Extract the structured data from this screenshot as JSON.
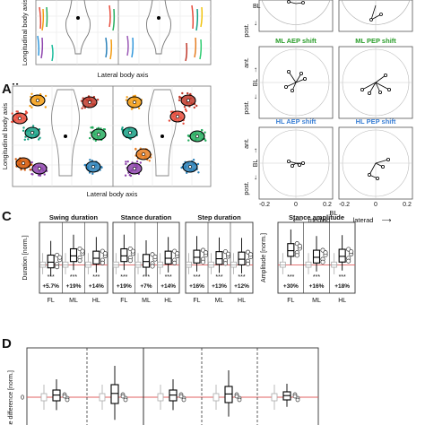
{
  "panels": {
    "aii": "Aii",
    "c": "C",
    "d": "D"
  },
  "panel_a": {
    "ylabel": "Longitudinal body axis",
    "xlabel": "Lateral body axis",
    "aii_ylabel": "Longitudinal body axis",
    "aii_xlabel": "Lateral body axis"
  },
  "shift_panels": {
    "bl": "BL",
    "ant": "ant.",
    "post": "post.",
    "titles": {
      "ml_aep": "ML AEP shift",
      "ml_pep": "ML PEP shift",
      "hl_aep": "HL AEP shift",
      "hl_pep": "HL PEP shift"
    },
    "x_ticks": [
      "-0.2",
      "0",
      "0.2"
    ],
    "x_axis": {
      "left": "mediad",
      "mid": "BL",
      "right": "laterad"
    },
    "colors": {
      "ml": "#2a9d2a",
      "hl": "#3a7fd5"
    }
  },
  "chart_data": [
    {
      "type": "box",
      "title": "Swing duration",
      "ylabel": "Duration [norm.]",
      "categories": [
        "FL",
        "ML",
        "HL"
      ],
      "significance": [
        "***",
        "***",
        "***"
      ],
      "change_labels": [
        "+5.7%",
        "+19%",
        "+14%"
      ],
      "median_change": [
        1.057,
        1.19,
        1.14
      ],
      "baseline": 1.0
    },
    {
      "type": "box",
      "title": "Stance duration",
      "categories": [
        "FL",
        "ML",
        "HL"
      ],
      "significance": [
        "***",
        "***",
        "***"
      ],
      "change_labels": [
        "+19%",
        "+7%",
        "+14%"
      ],
      "median_change": [
        1.19,
        1.07,
        1.14
      ],
      "baseline": 1.0
    },
    {
      "type": "box",
      "title": "Step duration",
      "categories": [
        "FL",
        "ML",
        "HL"
      ],
      "significance": [
        "***",
        "***",
        "***"
      ],
      "change_labels": [
        "+16%",
        "+13%",
        "+12%"
      ],
      "median_change": [
        1.16,
        1.13,
        1.12
      ],
      "baseline": 1.0
    },
    {
      "type": "box",
      "title": "Stance amplitude",
      "ylabel": "Amplitude [norm.]",
      "categories": [
        "FL",
        "ML",
        "HL"
      ],
      "significance": [
        "***",
        "***",
        "***"
      ],
      "change_labels": [
        "+30%",
        "+16%",
        "+18%"
      ],
      "median_change": [
        1.3,
        1.16,
        1.18
      ],
      "baseline": 1.0
    },
    {
      "type": "box",
      "ylabel": "se difference [norm.]",
      "ytick_zero": "0",
      "baseline": 0
    }
  ]
}
